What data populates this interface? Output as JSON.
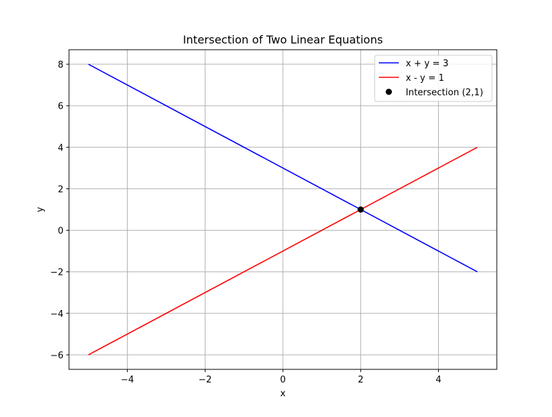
{
  "chart_data": {
    "type": "line",
    "title": "Intersection of Two Linear Equations",
    "xlabel": "x",
    "ylabel": "y",
    "xlim": [
      -5.5,
      5.5
    ],
    "ylim": [
      -6.7,
      8.7
    ],
    "xticks": [
      -4,
      -2,
      0,
      2,
      4
    ],
    "yticks": [
      -6,
      -4,
      -2,
      0,
      2,
      4,
      6,
      8
    ],
    "xtick_labels": [
      "−4",
      "−2",
      "0",
      "2",
      "4"
    ],
    "ytick_labels": [
      "−6",
      "−4",
      "−2",
      "0",
      "2",
      "4",
      "6",
      "8"
    ],
    "grid": true,
    "legend_position": "top-right",
    "series": [
      {
        "name": "x + y = 3",
        "color": "#0000ff",
        "type": "line",
        "x": [
          -5,
          5
        ],
        "y": [
          8,
          -2
        ]
      },
      {
        "name": "x - y = 1",
        "color": "#ff0000",
        "type": "line",
        "x": [
          -5,
          5
        ],
        "y": [
          -6,
          4
        ]
      }
    ],
    "points": [
      {
        "name": "Intersection (2,1)",
        "color": "#000000",
        "x": 2,
        "y": 1
      }
    ]
  }
}
